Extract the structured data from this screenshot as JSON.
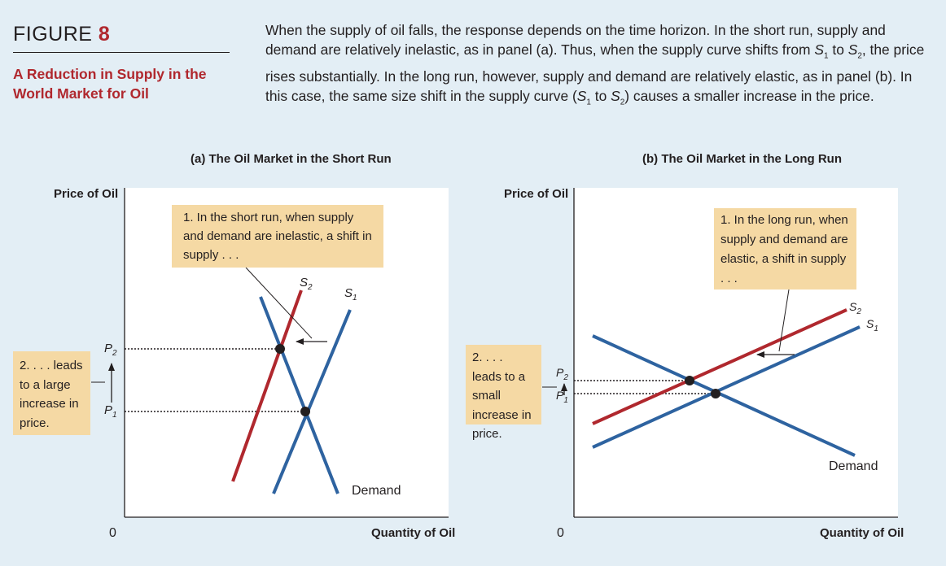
{
  "figure": {
    "label": "FIGURE",
    "number": "8",
    "title": "A Reduction in Supply in the World Market for Oil",
    "caption_html": "When the supply of oil falls, the response depends on the time horizon. In the short run, supply and demand are relatively inelastic, as in panel (a). Thus, when the supply curve shifts from <i>S</i><sub>1</sub> to <i>S</i><sub>2</sub>, the price rises substantially. In the long run, however, supply and demand are relatively elastic, as in panel (b). In this case, the same size shift in the supply curve (<i>S</i><sub>1</sub> to <i>S</i><sub>2</sub>) causes a smaller increase in the price."
  },
  "panel_a": {
    "title": "(a) The Oil Market in the Short Run",
    "y_axis": "Price of Oil",
    "x_axis": "Quantity of Oil",
    "origin": "0",
    "callout_shift": "1. In the short run, when supply and demand are inelastic, a shift in supply . . .",
    "callout_price": "2. . . . leads to a large increase in price.",
    "s2_label": "S",
    "s2_sub": "2",
    "s1_label": "S",
    "s1_sub": "1",
    "demand_label": "Demand",
    "p2_label": "P",
    "p2_sub": "2",
    "p1_label": "P",
    "p1_sub": "1"
  },
  "panel_b": {
    "title": "(b) The Oil Market in the Long Run",
    "y_axis": "Price of Oil",
    "x_axis": "Quantity of Oil",
    "origin": "0",
    "callout_shift": "1. In the long run, when supply and demand are elastic, a shift in supply . . .",
    "callout_price": "2. . . . leads to a small increase in price.",
    "s2_label": "S",
    "s2_sub": "2",
    "s1_label": "S",
    "s1_sub": "1",
    "demand_label": "Demand",
    "p2_label": "P",
    "p2_sub": "2",
    "p1_label": "P",
    "p1_sub": "1"
  },
  "colors": {
    "supply_red": "#b0282e",
    "blue": "#2e63a0",
    "callout": "#f5d9a4",
    "background": "#e3eef5",
    "title_red": "#b0282e"
  }
}
